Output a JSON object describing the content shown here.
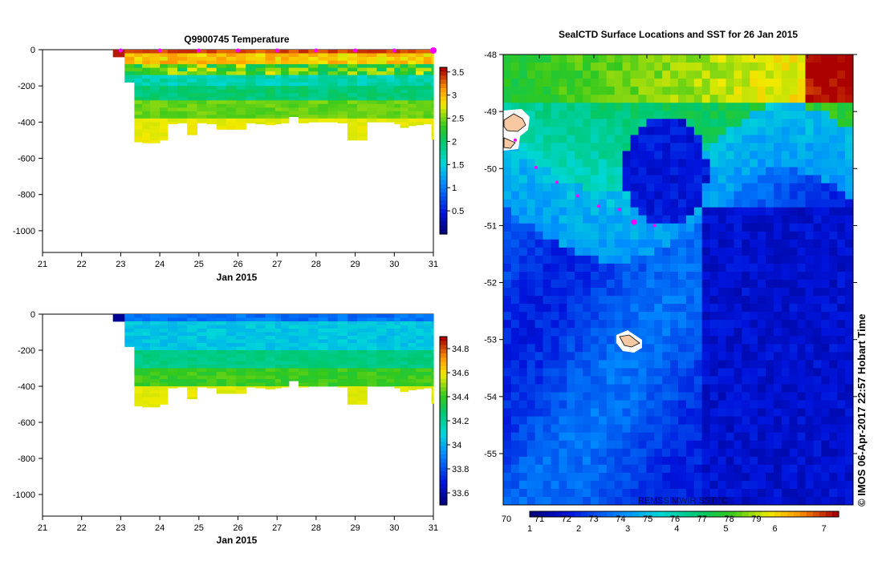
{
  "chart_data": [
    {
      "type": "heatmap",
      "title": "Q9900745  Temperature",
      "xlabel": "Jan 2015",
      "ylabel": "",
      "x_ticks": [
        "21",
        "22",
        "23",
        "24",
        "25",
        "26",
        "27",
        "28",
        "29",
        "30",
        "31"
      ],
      "xlim": [
        21,
        31
      ],
      "y_ticks": [
        0,
        -200,
        -400,
        -600,
        -800,
        -1000
      ],
      "ylim": [
        -1120,
        0
      ],
      "colorbar": {
        "ticks": [
          3.5,
          3,
          2.5,
          2,
          1.5,
          1,
          0.5
        ],
        "range": [
          0.0,
          3.6
        ]
      },
      "profiles": [
        {
          "day": 22.8,
          "bottom": -40
        },
        {
          "day": 23.1,
          "bottom": -180
        },
        {
          "day": 23.35,
          "bottom": -510
        },
        {
          "day": 23.55,
          "bottom": -515
        },
        {
          "day": 23.75,
          "bottom": -515
        },
        {
          "day": 24.0,
          "bottom": -500
        },
        {
          "day": 24.2,
          "bottom": -410
        },
        {
          "day": 24.45,
          "bottom": -405
        },
        {
          "day": 24.7,
          "bottom": -470
        },
        {
          "day": 24.95,
          "bottom": -405
        },
        {
          "day": 25.2,
          "bottom": -410
        },
        {
          "day": 25.45,
          "bottom": -440
        },
        {
          "day": 25.7,
          "bottom": -440
        },
        {
          "day": 25.95,
          "bottom": -440
        },
        {
          "day": 26.2,
          "bottom": -405
        },
        {
          "day": 26.45,
          "bottom": -410
        },
        {
          "day": 26.7,
          "bottom": -415
        },
        {
          "day": 26.95,
          "bottom": -410
        },
        {
          "day": 27.1,
          "bottom": -405
        },
        {
          "day": 27.3,
          "bottom": -370
        },
        {
          "day": 27.55,
          "bottom": -405
        },
        {
          "day": 27.8,
          "bottom": -400
        },
        {
          "day": 28.05,
          "bottom": -400
        },
        {
          "day": 28.3,
          "bottom": -400
        },
        {
          "day": 28.55,
          "bottom": -405
        },
        {
          "day": 28.8,
          "bottom": -500
        },
        {
          "day": 29.05,
          "bottom": -500
        },
        {
          "day": 29.3,
          "bottom": -400
        },
        {
          "day": 29.55,
          "bottom": -400
        },
        {
          "day": 29.8,
          "bottom": -400
        },
        {
          "day": 30.0,
          "bottom": -410
        },
        {
          "day": 30.15,
          "bottom": -430
        },
        {
          "day": 30.35,
          "bottom": -420
        },
        {
          "day": 30.55,
          "bottom": -415
        },
        {
          "day": 30.75,
          "bottom": -410
        },
        {
          "day": 30.95,
          "bottom": -495
        }
      ],
      "surface_markers": [
        23.0,
        24.0,
        25.0,
        26.0,
        27.0,
        28.0,
        29.0,
        30.0,
        31.0
      ]
    },
    {
      "type": "heatmap",
      "title": "",
      "xlabel": "Jan 2015",
      "ylabel": "",
      "x_ticks": [
        "21",
        "22",
        "23",
        "24",
        "25",
        "26",
        "27",
        "28",
        "29",
        "30",
        "31"
      ],
      "xlim": [
        21,
        31
      ],
      "y_ticks": [
        0,
        -200,
        -400,
        -600,
        -800,
        -1000
      ],
      "ylim": [
        -1120,
        0
      ],
      "colorbar": {
        "ticks": [
          34.8,
          34.6,
          34.4,
          34.2,
          34,
          33.8,
          33.6
        ],
        "range": [
          33.5,
          34.9
        ]
      }
    },
    {
      "type": "heatmap",
      "title": "SealCTD Surface Locations and SST for 26 Jan 2015",
      "xlabel": "",
      "ylabel": "",
      "y_ticks": [
        "-48",
        "-49",
        "-50",
        "-51",
        "-52",
        "-53",
        "-54",
        "-55"
      ],
      "ylim": [
        -55.9,
        -48
      ],
      "colorbar_label": "REMSS MWIR SST °C",
      "colorbar_bottom": {
        "ticks": [
          "1",
          "2",
          "3",
          "4",
          "5",
          "6",
          "7"
        ],
        "range": [
          1,
          7.3
        ]
      },
      "colorbar_top": {
        "ticks": [
          "70",
          "71",
          "72",
          "73",
          "74",
          "75",
          "76",
          "77",
          "78",
          "79"
        ]
      },
      "seal_positions_lat": [
        -49.5,
        -49.98,
        -50.24,
        -50.48,
        -50.66,
        -50.72,
        -50.94,
        -51.0
      ]
    }
  ],
  "credit": "© IMOS 06-Apr-2017 22:57 Hobart Time"
}
